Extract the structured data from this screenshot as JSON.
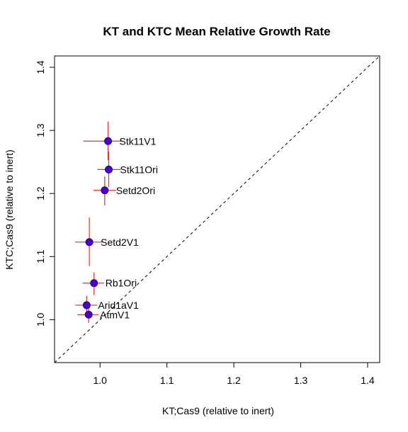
{
  "chart_data": {
    "type": "scatter",
    "title": "KT and KTC Mean Relative Growth Rate",
    "xlabel": "KT;Cas9 (relative to inert)",
    "ylabel": "KTC;Cas9 (relative to inert)",
    "xlim": [
      0.932,
      1.418
    ],
    "ylim": [
      0.932,
      1.418
    ],
    "xticks": [
      "1.0",
      "1.1",
      "1.2",
      "1.3",
      "1.4"
    ],
    "yticks": [
      "1.0",
      "1.1",
      "1.2",
      "1.3",
      "1.4"
    ],
    "grid": false,
    "reference_line": "y = x (dashed)",
    "point_color": "#4b00c8",
    "point_edge_color": "#1f00a0",
    "errorbar_color": "#e03030",
    "points": [
      {
        "label": "Stk11V1",
        "x": 1.012,
        "y": 1.283,
        "xerr": [
          0.975,
          1.033
        ],
        "yerr": [
          1.253,
          1.314
        ]
      },
      {
        "label": "Stk11Ori",
        "x": 1.013,
        "y": 1.238,
        "xerr": [
          0.996,
          1.031
        ],
        "yerr": [
          1.21,
          1.266
        ]
      },
      {
        "label": "Setd2Ori",
        "x": 1.007,
        "y": 1.205,
        "xerr": [
          0.99,
          1.024
        ],
        "yerr": [
          1.181,
          1.227
        ]
      },
      {
        "label": "Setd2V1",
        "x": 0.984,
        "y": 1.123,
        "xerr": [
          0.963,
          1.005
        ],
        "yerr": [
          1.085,
          1.162
        ]
      },
      {
        "label": "Rb1Ori",
        "x": 0.991,
        "y": 1.058,
        "xerr": [
          0.974,
          1.006
        ],
        "yerr": [
          1.039,
          1.075
        ]
      },
      {
        "label": "Arid1aV1",
        "x": 0.98,
        "y": 1.023,
        "xerr": [
          0.963,
          0.996
        ],
        "yerr": [
          1.006,
          1.038
        ]
      },
      {
        "label": "AtmV1",
        "x": 0.983,
        "y": 1.008,
        "xerr": [
          0.966,
          0.998
        ],
        "yerr": [
          0.995,
          1.021
        ]
      }
    ]
  }
}
